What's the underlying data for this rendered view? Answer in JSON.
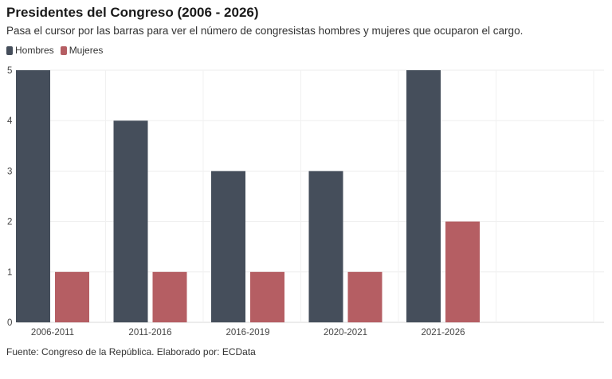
{
  "header": {
    "title": "Presidentes del Congreso (2006 - 2026)",
    "subtitle": "Pasa el cursor por las barras para ver el número de congresistas hombres y mujeres que ocuparon el cargo."
  },
  "legend": {
    "items": [
      {
        "label": "Hombres",
        "color": "#454e5b"
      },
      {
        "label": "Mujeres",
        "color": "#b55e63"
      }
    ]
  },
  "footer": {
    "source": "Fuente: Congreso de la República. Elaborado por: ECData"
  },
  "chart_data": {
    "type": "bar",
    "categories": [
      "2006-2011",
      "2011-2016",
      "2016-2019",
      "2020-2021",
      "2021-2026"
    ],
    "series": [
      {
        "name": "Hombres",
        "values": [
          5,
          4,
          3,
          3,
          5
        ],
        "color": "#454e5b"
      },
      {
        "name": "Mujeres",
        "values": [
          1,
          1,
          1,
          1,
          2
        ],
        "color": "#b55e63"
      }
    ],
    "yticks": [
      0,
      1,
      2,
      3,
      4,
      5
    ],
    "ylim": [
      0,
      5
    ],
    "grid": true,
    "legend_position": "top-left"
  }
}
